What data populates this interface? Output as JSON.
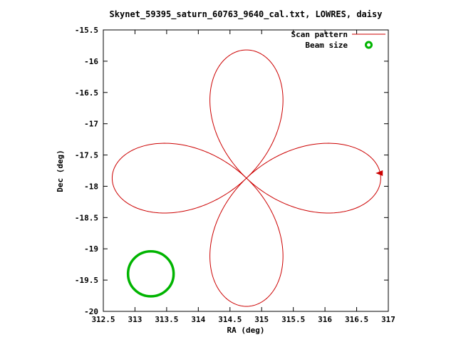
{
  "title": "Skynet_59395_saturn_60763_9640_cal.txt, LOWRES, daisy",
  "chart_data": {
    "type": "line",
    "title": "Skynet_59395_saturn_60763_9640_cal.txt, LOWRES, daisy",
    "xlabel": "RA (deg)",
    "ylabel": "Dec (deg)",
    "xlim": [
      312.5,
      317
    ],
    "ylim": [
      -20,
      -15.5
    ],
    "x_ticks": [
      312.5,
      313,
      313.5,
      314,
      314.5,
      315,
      315.5,
      316,
      316.5,
      317
    ],
    "x_tick_labels": [
      "312.5",
      "313",
      "313.5",
      "314",
      "314.5",
      "315",
      "315.5",
      "316",
      "316.5",
      "317"
    ],
    "y_ticks": [
      -20,
      -19.5,
      -19,
      -18.5,
      -18,
      -17.5,
      -17,
      -16.5,
      -16,
      -15.5
    ],
    "y_tick_labels": [
      "-20",
      "-19.5",
      "-19",
      "-18.5",
      "-18",
      "-17.5",
      "-17",
      "-16.5",
      "-16",
      "-15.5"
    ],
    "grid": false,
    "legend_position": "top-right",
    "legend": [
      {
        "label": "Scan pattern",
        "color": "#cc0000",
        "sample": "line"
      },
      {
        "label": "Beam size",
        "color": "#00b400",
        "sample": "point"
      }
    ],
    "series": [
      {
        "name": "Scan pattern",
        "pattern": "rose",
        "petals": 4,
        "center_ra": 314.76,
        "center_dec": -17.87,
        "amplitude_ra": 2.12,
        "amplitude_dec": 2.05,
        "color": "#cc0000"
      },
      {
        "name": "Beam size",
        "pattern": "circle",
        "center_ra": 313.25,
        "center_dec": -19.4,
        "radius_deg": 0.36,
        "color": "#00b400"
      }
    ],
    "arrow": {
      "ra": 316.8,
      "dec": -17.79,
      "direction": "left",
      "color": "#cc0000"
    }
  },
  "colors": {
    "scan": "#cc0000",
    "beam": "#00b400",
    "axis": "#000000",
    "background": "#ffffff"
  }
}
